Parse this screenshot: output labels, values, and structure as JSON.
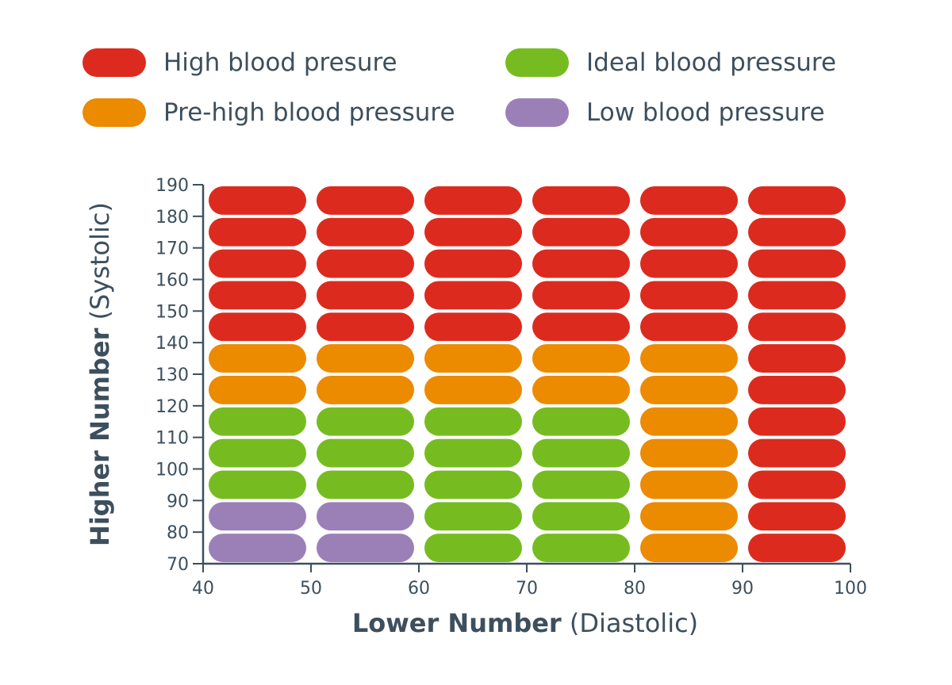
{
  "chart_data": {
    "type": "heatmap",
    "title": "",
    "xlabel": {
      "bold": "Lower Number",
      "rest": "(Diastolic)"
    },
    "ylabel": {
      "bold": "Higher Number",
      "rest": "(Systolic)"
    },
    "xlim": [
      40,
      100
    ],
    "ylim": [
      70,
      190
    ],
    "x_ticks": [
      40,
      50,
      60,
      70,
      80,
      90,
      100
    ],
    "y_ticks": [
      70,
      80,
      90,
      100,
      110,
      120,
      130,
      140,
      150,
      160,
      170,
      180,
      190
    ],
    "x_bins": [
      [
        40,
        50
      ],
      [
        50,
        60
      ],
      [
        60,
        70
      ],
      [
        70,
        80
      ],
      [
        80,
        90
      ],
      [
        90,
        100
      ]
    ],
    "y_bins": [
      [
        70,
        80
      ],
      [
        80,
        90
      ],
      [
        90,
        100
      ],
      [
        100,
        110
      ],
      [
        110,
        120
      ],
      [
        120,
        130
      ],
      [
        130,
        140
      ],
      [
        140,
        150
      ],
      [
        150,
        160
      ],
      [
        160,
        170
      ],
      [
        170,
        180
      ],
      [
        180,
        190
      ]
    ],
    "categories": {
      "high": {
        "label": "High blood presure",
        "color": "#dc2b1e"
      },
      "prehigh": {
        "label": "Pre-high blood pressure",
        "color": "#ec8a00"
      },
      "ideal": {
        "label": "Ideal blood pressure",
        "color": "#76bc21"
      },
      "low": {
        "label": "Low blood pressure",
        "color": "#9b80b8"
      }
    },
    "cells_by_column": [
      [
        "low",
        "low",
        "ideal",
        "ideal",
        "ideal",
        "prehigh",
        "prehigh",
        "high",
        "high",
        "high",
        "high",
        "high"
      ],
      [
        "low",
        "low",
        "ideal",
        "ideal",
        "ideal",
        "prehigh",
        "prehigh",
        "high",
        "high",
        "high",
        "high",
        "high"
      ],
      [
        "ideal",
        "ideal",
        "ideal",
        "ideal",
        "ideal",
        "prehigh",
        "prehigh",
        "high",
        "high",
        "high",
        "high",
        "high"
      ],
      [
        "ideal",
        "ideal",
        "ideal",
        "ideal",
        "ideal",
        "prehigh",
        "prehigh",
        "high",
        "high",
        "high",
        "high",
        "high"
      ],
      [
        "prehigh",
        "prehigh",
        "prehigh",
        "prehigh",
        "prehigh",
        "prehigh",
        "prehigh",
        "high",
        "high",
        "high",
        "high",
        "high"
      ],
      [
        "high",
        "high",
        "high",
        "high",
        "high",
        "high",
        "high",
        "high",
        "high",
        "high",
        "high",
        "high"
      ]
    ],
    "legend_position": "top"
  }
}
